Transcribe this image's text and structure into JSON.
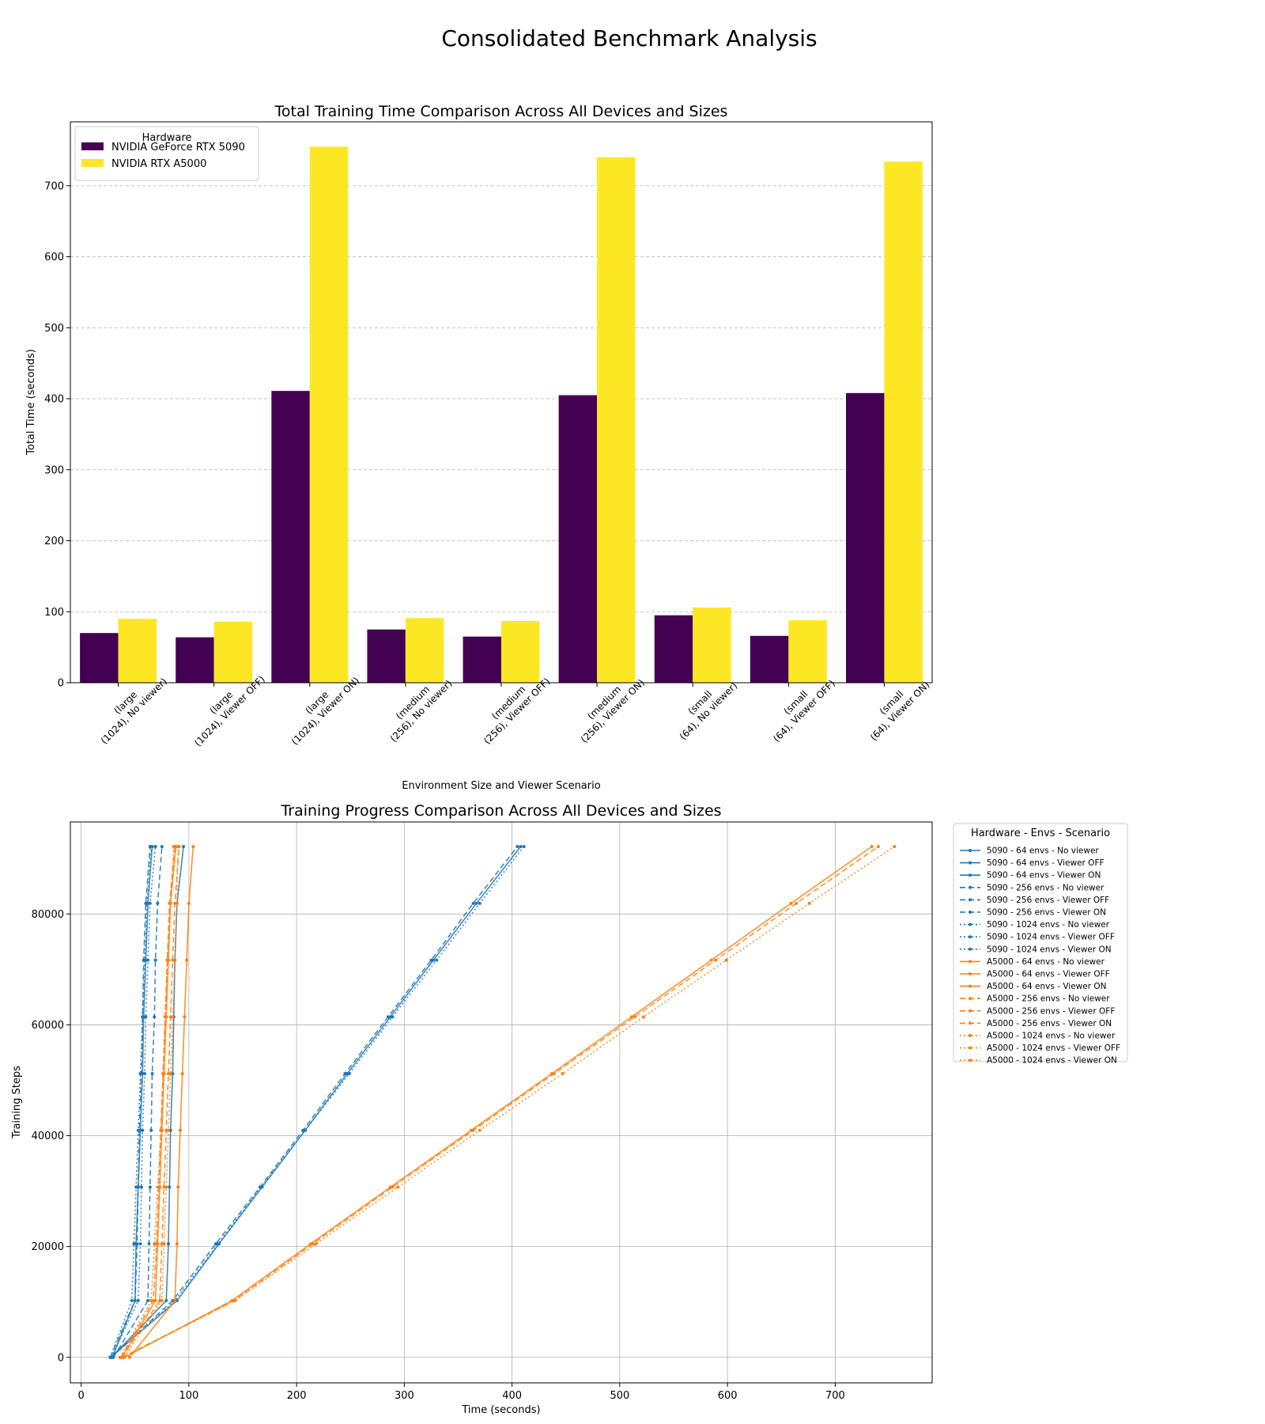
{
  "figure": {
    "suptitle": "Consolidated Benchmark Analysis"
  },
  "chart_data": [
    {
      "type": "bar",
      "title": "Total Training Time Comparison Across All Devices and Sizes",
      "xlabel": "Environment Size and Viewer Scenario",
      "ylabel": "Total Time (seconds)",
      "ylim": [
        0,
        790
      ],
      "yticks": [
        0,
        100,
        200,
        300,
        400,
        500,
        600,
        700
      ],
      "grid": "y-dashed",
      "legend": {
        "title": "Hardware",
        "placement": "top-left"
      },
      "categories": [
        "(large\n(1024), No viewer)",
        "(large\n(1024), Viewer OFF)",
        "(large\n(1024), Viewer ON)",
        "(medium\n(256), No viewer)",
        "(medium\n(256), Viewer OFF)",
        "(medium\n(256), Viewer ON)",
        "(small\n(64), No viewer)",
        "(small\n(64), Viewer OFF)",
        "(small\n(64), Viewer ON)"
      ],
      "series": [
        {
          "name": "NVIDIA GeForce RTX 5090",
          "color": "#440154",
          "values": [
            70,
            64,
            411,
            75,
            65,
            405,
            95,
            66,
            408
          ]
        },
        {
          "name": "NVIDIA RTX A5000",
          "color": "#fde725",
          "values": [
            90,
            86,
            755,
            91,
            87,
            740,
            106,
            88,
            734
          ]
        }
      ]
    },
    {
      "type": "line",
      "title": "Training Progress Comparison Across All Devices and Sizes",
      "xlabel": "Time (seconds)",
      "ylabel": "Training Steps",
      "xlim": [
        -10,
        790
      ],
      "ylim": [
        -4600,
        96600
      ],
      "xticks": [
        0,
        100,
        200,
        300,
        400,
        500,
        600,
        700
      ],
      "yticks": [
        0,
        20000,
        40000,
        60000,
        80000
      ],
      "grid": "both",
      "legend": {
        "title": "Hardware - Envs - Scenario",
        "placement": "outside-right"
      },
      "steps": [
        0,
        10240,
        20480,
        30720,
        40960,
        51200,
        61440,
        71680,
        81920,
        92160
      ],
      "series": [
        {
          "name": "5090 - 64 envs - No viewer",
          "color": "#1f77b4",
          "dash": "solid",
          "x": [
            28,
            79,
            81,
            82,
            83,
            85,
            86,
            87,
            89,
            95
          ]
        },
        {
          "name": "5090 - 64 envs - Viewer OFF",
          "color": "#1f77b4",
          "dash": "solid",
          "x": [
            29,
            50,
            51,
            53,
            55,
            57,
            58,
            60,
            62,
            66
          ]
        },
        {
          "name": "5090 - 64 envs - Viewer ON",
          "color": "#1f77b4",
          "dash": "solid",
          "x": [
            27,
            89,
            128,
            168,
            208,
            247,
            287,
            327,
            367,
            408
          ]
        },
        {
          "name": "5090 - 256 envs - No viewer",
          "color": "#1f77b4",
          "dash": "dashed",
          "x": [
            30,
            62,
            63,
            64,
            65,
            66,
            68,
            69,
            71,
            75
          ]
        },
        {
          "name": "5090 - 256 envs - Viewer OFF",
          "color": "#1f77b4",
          "dash": "dashed",
          "x": [
            27,
            50,
            52,
            53,
            54,
            56,
            57,
            58,
            60,
            64
          ]
        },
        {
          "name": "5090 - 256 envs - Viewer ON",
          "color": "#1f77b4",
          "dash": "dashed",
          "x": [
            28,
            85,
            125,
            166,
            206,
            245,
            285,
            325,
            364,
            405
          ]
        },
        {
          "name": "5090 - 1024 envs - No viewer",
          "color": "#1f77b4",
          "dash": "dotted",
          "x": [
            28,
            53,
            55,
            56,
            57,
            59,
            60,
            62,
            64,
            69
          ]
        },
        {
          "name": "5090 - 1024 envs - Viewer OFF",
          "color": "#1f77b4",
          "dash": "dotted",
          "x": [
            27,
            47,
            49,
            51,
            53,
            55,
            57,
            59,
            61,
            65
          ]
        },
        {
          "name": "5090 - 1024 envs - Viewer ON",
          "color": "#1f77b4",
          "dash": "dotted",
          "x": [
            28,
            87,
            127,
            167,
            208,
            249,
            289,
            330,
            370,
            411
          ]
        },
        {
          "name": "A5000 - 64 envs - No viewer",
          "color": "#ff7f0e",
          "dash": "solid",
          "x": [
            45,
            87,
            89,
            90,
            92,
            94,
            96,
            98,
            100,
            104
          ]
        },
        {
          "name": "A5000 - 64 envs - Viewer OFF",
          "color": "#ff7f0e",
          "dash": "solid",
          "x": [
            38,
            69,
            71,
            73,
            75,
            77,
            79,
            81,
            83,
            88
          ]
        },
        {
          "name": "A5000 - 64 envs - Viewer ON",
          "color": "#ff7f0e",
          "dash": "solid",
          "x": [
            40,
            140,
            213,
            287,
            362,
            437,
            511,
            585,
            659,
            734
          ]
        },
        {
          "name": "A5000 - 256 envs - No viewer",
          "color": "#ff7f0e",
          "dash": "dashed",
          "x": [
            38,
            73,
            75,
            77,
            79,
            81,
            83,
            85,
            87,
            91
          ]
        },
        {
          "name": "A5000 - 256 envs - Viewer OFF",
          "color": "#ff7f0e",
          "dash": "dashed",
          "x": [
            37,
            67,
            70,
            72,
            74,
            76,
            78,
            80,
            82,
            87
          ]
        },
        {
          "name": "A5000 - 256 envs - Viewer ON",
          "color": "#ff7f0e",
          "dash": "dashed",
          "x": [
            38,
            142,
            215,
            289,
            364,
            439,
            514,
            589,
            664,
            740
          ]
        },
        {
          "name": "A5000 - 1024 envs - No viewer",
          "color": "#ff7f0e",
          "dash": "dotted",
          "x": [
            40,
            75,
            77,
            79,
            81,
            83,
            85,
            87,
            89,
            90
          ]
        },
        {
          "name": "A5000 - 1024 envs - Viewer OFF",
          "color": "#ff7f0e",
          "dash": "dotted",
          "x": [
            36,
            65,
            68,
            71,
            74,
            76,
            78,
            80,
            83,
            86
          ]
        },
        {
          "name": "A5000 - 1024 envs - Viewer ON",
          "color": "#ff7f0e",
          "dash": "dotted",
          "x": [
            39,
            143,
            218,
            294,
            370,
            447,
            522,
            599,
            676,
            755
          ]
        }
      ]
    }
  ]
}
